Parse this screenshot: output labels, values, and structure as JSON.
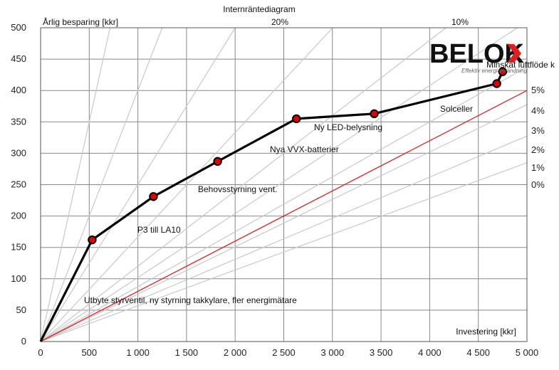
{
  "chart_data": {
    "type": "line",
    "title": "Internräntediagram",
    "ylabel": "Årlig besparing [kkr]",
    "xlabel": "Investering [kkr]",
    "xlim": [
      0,
      5000
    ],
    "ylim": [
      0,
      500
    ],
    "x_ticks": [
      "0",
      "500",
      "1 000",
      "1 500",
      "2 000",
      "2 500",
      "3 000",
      "3 500",
      "4 000",
      "4 500",
      "5 000"
    ],
    "y_ticks": [
      "0",
      "50",
      "100",
      "150",
      "200",
      "250",
      "300",
      "350",
      "400",
      "450",
      "500"
    ],
    "grid": true,
    "series": [
      {
        "name": "",
        "color": "#000000",
        "marker_color": "#e00000",
        "x": [
          0,
          530,
          1160,
          1820,
          2630,
          3430,
          4690,
          4750
        ],
        "y": [
          0,
          162,
          231,
          287,
          355,
          363,
          411,
          430
        ]
      }
    ],
    "point_labels": [
      "Utbyte styrventil, ny styrning takkylare, fler energimätare",
      "P3 till LA10",
      "Behovsstyrning vent.",
      "Nya VVX-batterier",
      "Ny LED-belysning",
      "Solceller",
      "Minskat luftflöde k"
    ],
    "rate_lines": {
      "percent_labels": [
        "5%",
        "4%",
        "3%",
        "2%",
        "1%",
        "0%"
      ],
      "top_labels": [
        "20%",
        "10%"
      ],
      "highlight_color": "#e02020",
      "line_color": "#c8c8c8",
      "slopes": [
        0.057,
        0.0655,
        0.0755,
        0.0875,
        0.102,
        0.12,
        0.1665,
        0.25,
        0.4,
        0.7
      ]
    },
    "logo": {
      "text": "BELOK",
      "tagline": "Effektiv energianvändning"
    }
  }
}
